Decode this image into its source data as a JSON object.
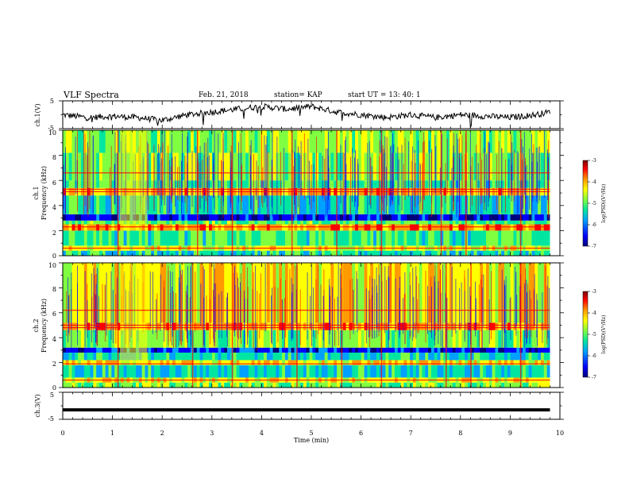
{
  "header": {
    "title": "VLF Spectra",
    "date": "Feb. 21, 2018",
    "station": "station= KAP",
    "start_time": "start UT =  13: 40: 1"
  },
  "chart_data": [
    {
      "type": "line",
      "panel": "ch1-voltage",
      "ylabel": "ch.1(V)",
      "ylim": [
        -5,
        5
      ],
      "yticks": [
        "5",
        "-5"
      ],
      "xlim": [
        0,
        10
      ],
      "series": [
        {
          "x": [
            0.0,
            0.5,
            1.0,
            1.5,
            2.0,
            2.5,
            3.0,
            3.5,
            4.0,
            4.5,
            5.0,
            5.5,
            6.0,
            6.5,
            7.0,
            7.5,
            8.0,
            8.5,
            9.0,
            9.5,
            9.8
          ],
          "values": [
            0,
            -1,
            -0.5,
            -1,
            -2,
            0,
            1,
            2,
            3,
            2,
            3,
            1,
            0,
            -1,
            0,
            -1,
            0,
            -0.5,
            -1,
            0,
            1
          ]
        }
      ],
      "color": "#000000"
    },
    {
      "type": "heatmap",
      "panel": "ch1-spectrogram",
      "ylabel": "ch.1\nFrequency (kHz)",
      "ylabel_line1": "ch.1",
      "ylabel_line2": "Frequency (kHz)",
      "ylim": [
        0,
        10
      ],
      "yticks": [
        "0",
        "2",
        "4",
        "6",
        "8",
        "10"
      ],
      "xlim": [
        0,
        10
      ],
      "data_extent_min": 9.8,
      "colorscale_quantity": "log(PSD)(V²/Hz)",
      "colorscale_range": [
        -7,
        -3
      ],
      "colorscale_ticks": [
        "-3",
        "-4",
        "-5",
        "-6",
        "-7"
      ],
      "bands_khz": [
        {
          "from": 0.0,
          "to": 0.4,
          "level": -5.5
        },
        {
          "from": 0.4,
          "to": 0.8,
          "level": -4.6
        },
        {
          "from": 0.8,
          "to": 2.0,
          "level": -5.3
        },
        {
          "from": 2.0,
          "to": 2.5,
          "level": -4.0
        },
        {
          "from": 2.5,
          "to": 2.8,
          "level": -5.2
        },
        {
          "from": 2.8,
          "to": 3.3,
          "level": -6.6
        },
        {
          "from": 3.3,
          "to": 4.8,
          "level": -5.6
        },
        {
          "from": 4.8,
          "to": 5.4,
          "level": -4.2
        },
        {
          "from": 5.4,
          "to": 6.0,
          "level": -5.3
        },
        {
          "from": 6.0,
          "to": 8.2,
          "level": -5.0
        },
        {
          "from": 8.2,
          "to": 10.0,
          "level": -4.9
        }
      ],
      "hot_lines_khz": [
        0.6,
        2.3,
        5.1,
        5.3,
        6.6
      ],
      "burst_minutes": [
        1.1,
        2.7,
        3.4,
        4.6,
        5.5,
        6.4,
        7.6,
        8.1,
        9.2
      ]
    },
    {
      "type": "heatmap",
      "panel": "ch2-spectrogram",
      "ylabel": "ch.2\nFrequency (kHz)",
      "ylabel_line1": "ch.2",
      "ylabel_line2": "Frequency (kHz)",
      "ylim": [
        0,
        10
      ],
      "yticks": [
        "0",
        "2",
        "4",
        "6",
        "8",
        "10"
      ],
      "xlim": [
        0,
        10
      ],
      "data_extent_min": 9.8,
      "colorscale_quantity": "log(PSD)(V²/Hz)",
      "colorscale_range": [
        -7,
        -3
      ],
      "colorscale_ticks": [
        "-3",
        "-4",
        "-5",
        "-6",
        "-7"
      ],
      "bands_khz": [
        {
          "from": 0.0,
          "to": 0.4,
          "level": -5.0
        },
        {
          "from": 0.4,
          "to": 0.8,
          "level": -4.5
        },
        {
          "from": 0.8,
          "to": 1.8,
          "level": -5.6
        },
        {
          "from": 1.8,
          "to": 2.2,
          "level": -4.4
        },
        {
          "from": 2.2,
          "to": 2.8,
          "level": -5.6
        },
        {
          "from": 2.8,
          "to": 3.2,
          "level": -6.5
        },
        {
          "from": 3.2,
          "to": 4.6,
          "level": -5.0
        },
        {
          "from": 4.6,
          "to": 5.2,
          "level": -4.1
        },
        {
          "from": 5.2,
          "to": 10.0,
          "level": -4.5
        }
      ],
      "hot_lines_khz": [
        0.6,
        1.9,
        4.8,
        5.0,
        6.2
      ],
      "burst_minutes": [
        1.1,
        2.6,
        3.4,
        4.7,
        5.6,
        6.4,
        7.7,
        8.2,
        9.2
      ]
    },
    {
      "type": "line",
      "panel": "ch3-voltage",
      "ylabel": "ch.3(V)",
      "ylim": [
        -5,
        5
      ],
      "yticks": [
        "5",
        "-5"
      ],
      "xlim": [
        0,
        10
      ],
      "xlabel": "Time (min)",
      "xticks": [
        "0",
        "1",
        "2",
        "3",
        "4",
        "5",
        "6",
        "7",
        "8",
        "9",
        "10"
      ],
      "series": [
        {
          "x": [
            0,
            9.8
          ],
          "values": [
            -1.5,
            -1.5
          ]
        }
      ],
      "color": "#000000"
    }
  ],
  "colorbar_colors": [
    "#7a0000",
    "#ff0000",
    "#ff9a00",
    "#ffff00",
    "#80ff40",
    "#00e6a0",
    "#00a0ff",
    "#0000ff",
    "#00007a"
  ]
}
